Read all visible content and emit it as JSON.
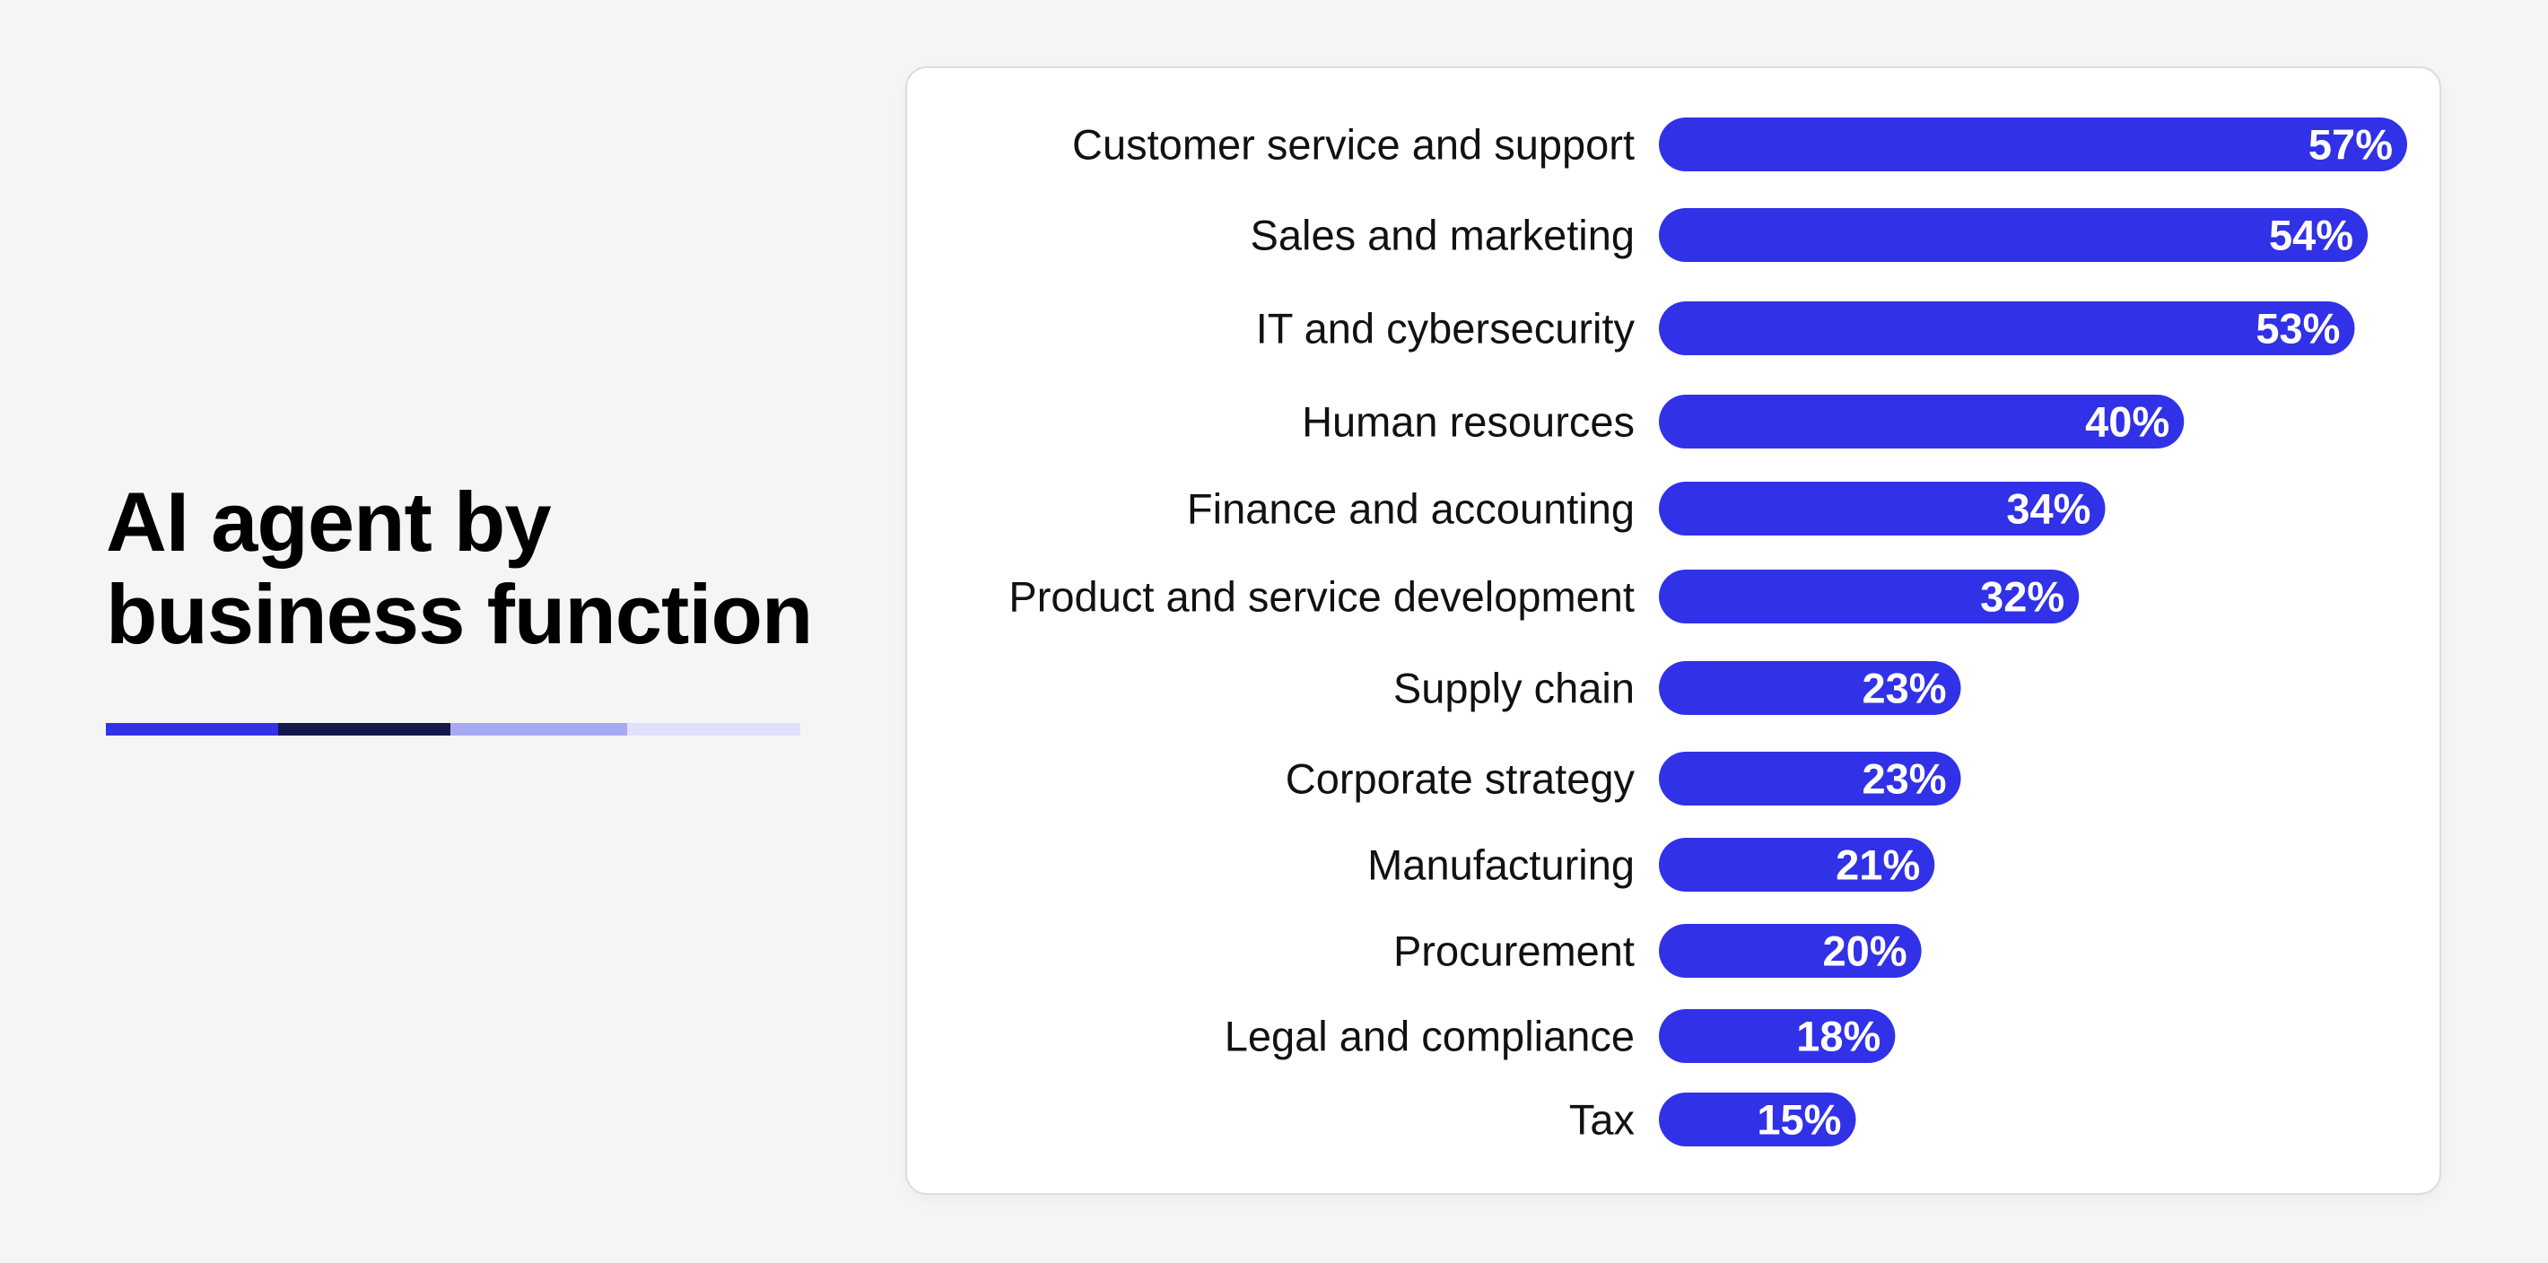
{
  "title": {
    "line1": "AI agent by",
    "line2": "business function"
  },
  "colors": {
    "background": "#f5f5f5",
    "card": "#ffffff",
    "bar": "#3131e8",
    "strip": [
      "#3131e8",
      "#16164f",
      "#a7aaf2",
      "#dfe0fb"
    ]
  },
  "chart_data": {
    "type": "bar",
    "orientation": "horizontal",
    "categories": [
      "Customer service and support",
      "Sales and marketing",
      "IT and cybersecurity",
      "Human resources",
      "Finance and accounting",
      "Product and service development",
      "Supply chain",
      "Corporate strategy",
      "Manufacturing",
      "Procurement",
      "Legal and compliance",
      "Tax"
    ],
    "values": [
      57,
      54,
      53,
      40,
      34,
      32,
      23,
      23,
      21,
      20,
      18,
      15
    ],
    "value_labels": [
      "57%",
      "54%",
      "53%",
      "40%",
      "34%",
      "32%",
      "23%",
      "23%",
      "21%",
      "20%",
      "18%",
      "15%"
    ],
    "unit": "%",
    "xlim": [
      0,
      57
    ],
    "grid": false,
    "legend": "none"
  }
}
